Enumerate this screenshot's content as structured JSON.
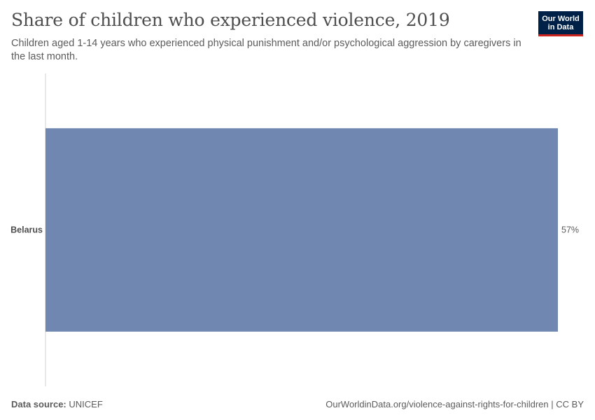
{
  "header": {
    "title": "Share of children who experienced violence, 2019",
    "subtitle": "Children aged 1-14 years who experienced physical punishment and/or psychological aggression by caregivers in the last month."
  },
  "logo": {
    "line1": "Our World",
    "line2": "in Data"
  },
  "footer": {
    "source_label": "Data source:",
    "source_value": "UNICEF",
    "url": "OurWorldinData.org/violence-against-rights-for-children",
    "license": "CC BY"
  },
  "colors": {
    "bar": "#7088b1",
    "axis": "#d0d0d0",
    "text": "#5b5b5b"
  },
  "chart_data": {
    "type": "bar",
    "orientation": "horizontal",
    "title": "Share of children who experienced violence, 2019",
    "categories": [
      "Belarus"
    ],
    "values": [
      57
    ],
    "value_labels": [
      "57%"
    ],
    "unit": "%",
    "xlim": [
      0,
      57
    ]
  }
}
